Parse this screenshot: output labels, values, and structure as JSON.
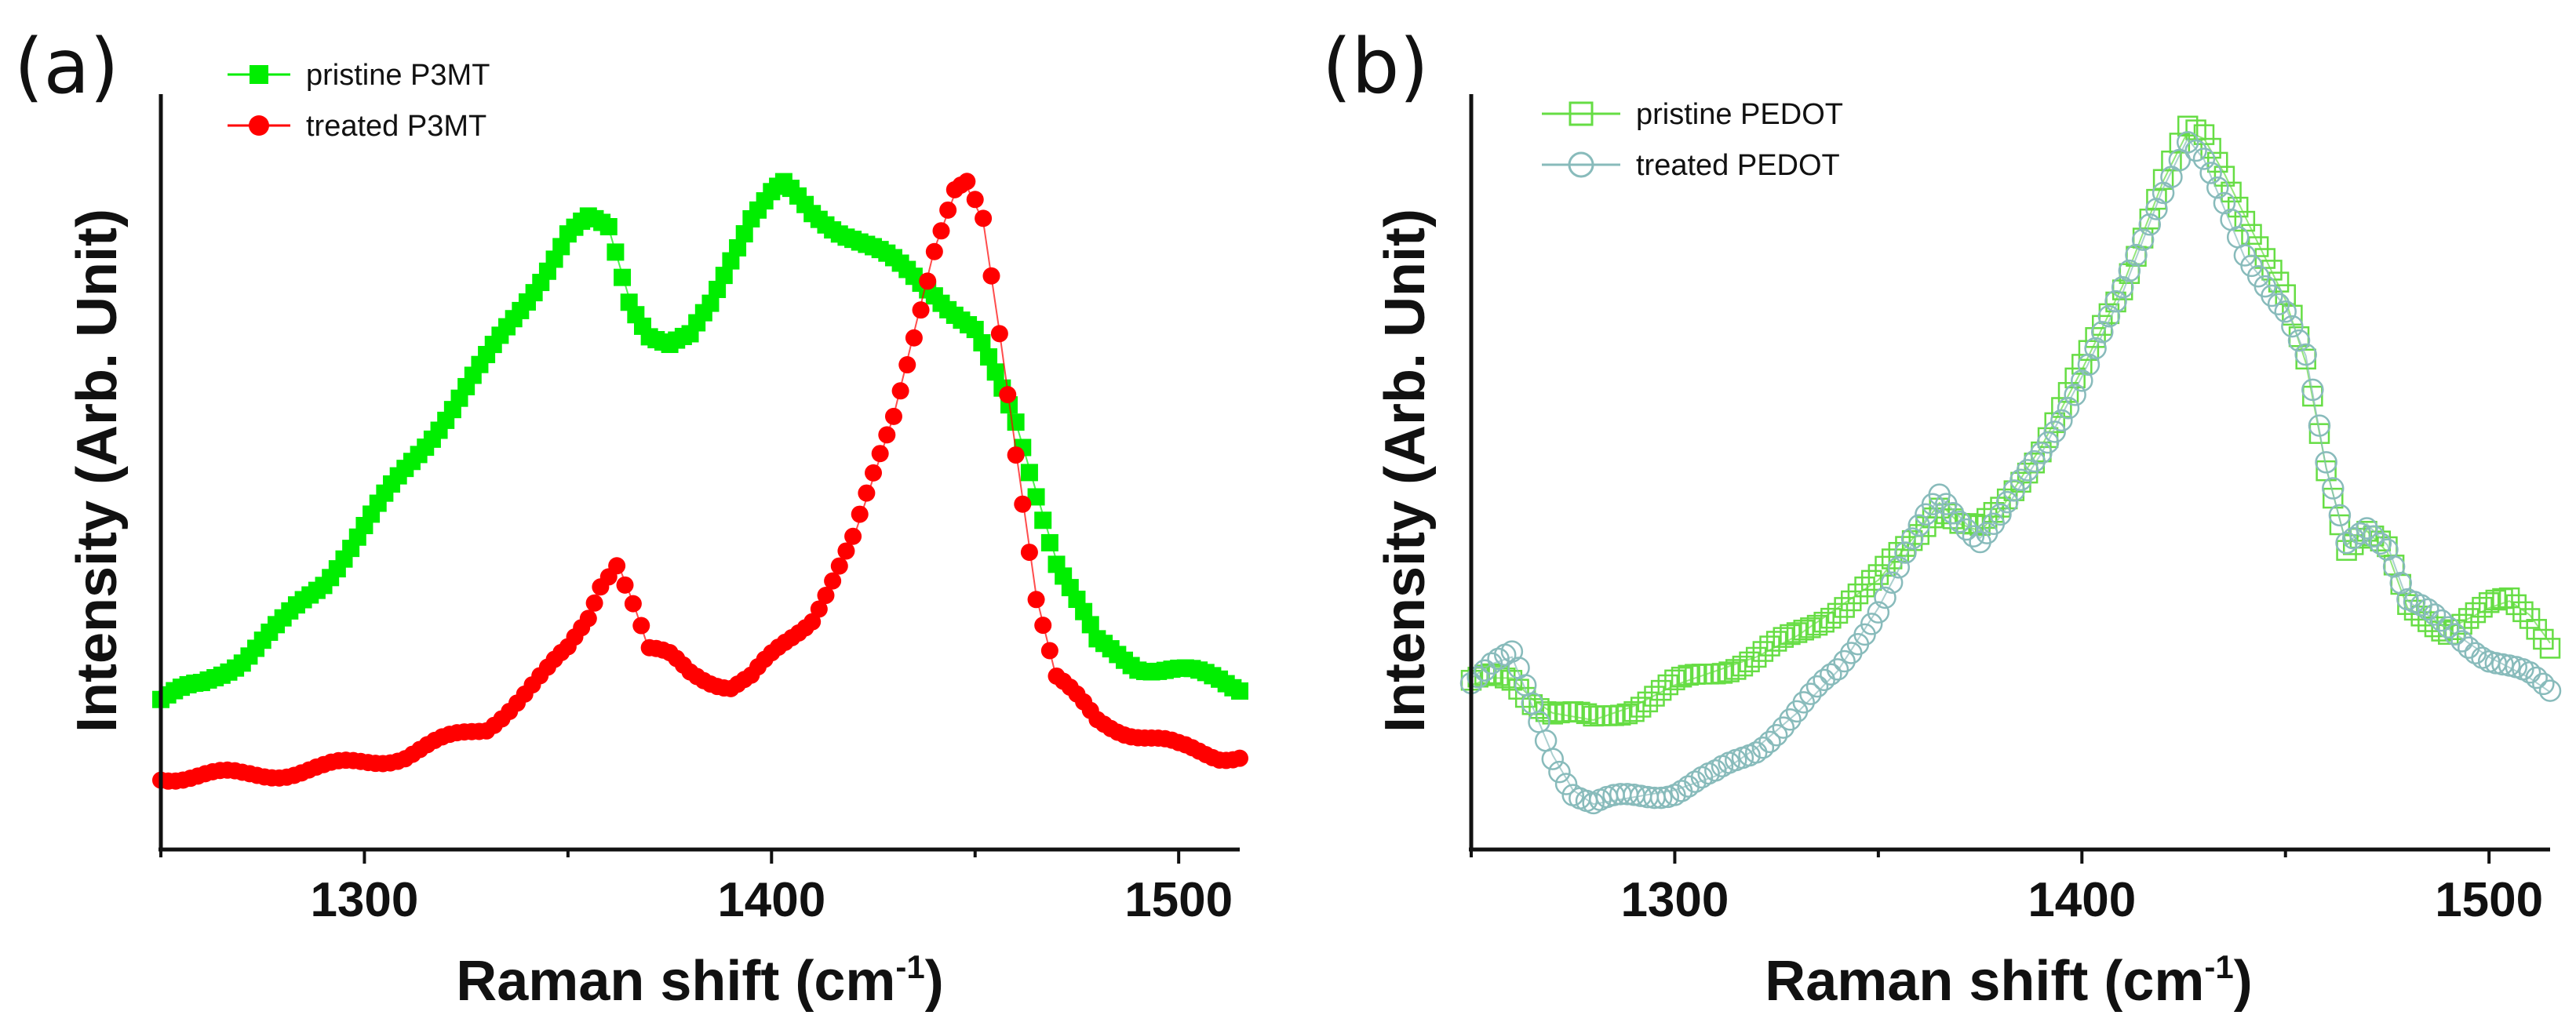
{
  "chart_data": [
    {
      "panel": "(a)",
      "type": "scatter",
      "xlabel": "Raman shift (cm",
      "xlabel_sup": "-1",
      "xlabel_close": ")",
      "ylabel": "Intensity (Arb. Unit)",
      "xlim": [
        1250,
        1515
      ],
      "ylim": [
        0,
        1.0
      ],
      "xticks": [
        1300,
        1400,
        1500
      ],
      "yticks_shown": false,
      "legend_position": "top-left",
      "series": [
        {
          "name": "pristine P3MT",
          "color": "#00ee00",
          "marker": "filled-square",
          "x": [
            1250,
            1260,
            1270,
            1280,
            1290,
            1300,
            1310,
            1320,
            1330,
            1340,
            1350,
            1355,
            1360,
            1365,
            1370,
            1375,
            1380,
            1385,
            1390,
            1395,
            1400,
            1403,
            1410,
            1420,
            1430,
            1440,
            1450,
            1460,
            1470,
            1480,
            1490,
            1500,
            1510,
            1515
          ],
          "y": [
            0.16,
            0.18,
            0.22,
            0.27,
            0.33,
            0.41,
            0.49,
            0.57,
            0.65,
            0.74,
            0.83,
            0.85,
            0.84,
            0.74,
            0.69,
            0.67,
            0.68,
            0.73,
            0.8,
            0.86,
            0.89,
            0.9,
            0.86,
            0.83,
            0.79,
            0.75,
            0.69,
            0.56,
            0.36,
            0.24,
            0.21,
            0.2,
            0.19,
            0.18
          ]
        },
        {
          "name": "treated P3MT",
          "color": "#ff0000",
          "marker": "filled-circle",
          "x": [
            1250,
            1270,
            1290,
            1310,
            1330,
            1345,
            1350,
            1355,
            1358,
            1362,
            1366,
            1370,
            1375,
            1380,
            1390,
            1395,
            1400,
            1410,
            1420,
            1430,
            1435,
            1440,
            1445,
            1448,
            1452,
            1456,
            1460,
            1465,
            1470,
            1480,
            1490,
            1500,
            1510,
            1515
          ],
          "y": [
            0.05,
            0.05,
            0.06,
            0.08,
            0.12,
            0.2,
            0.23,
            0.28,
            0.33,
            0.36,
            0.3,
            0.23,
            0.22,
            0.2,
            0.18,
            0.19,
            0.22,
            0.28,
            0.39,
            0.57,
            0.69,
            0.81,
            0.89,
            0.9,
            0.85,
            0.69,
            0.52,
            0.31,
            0.19,
            0.13,
            0.11,
            0.09,
            0.08,
            0.08
          ]
        }
      ]
    },
    {
      "panel": "(b)",
      "type": "scatter",
      "xlabel": "Raman shift (cm",
      "xlabel_sup": "-1",
      "xlabel_close": ")",
      "ylabel": "Intensity (Arb. Unit)",
      "xlim": [
        1250,
        1515
      ],
      "ylim": [
        0,
        1.0
      ],
      "xticks": [
        1300,
        1400,
        1500
      ],
      "yticks_shown": false,
      "legend_position": "top-left",
      "series": [
        {
          "name": "pristine PEDOT",
          "color": "#66dd44",
          "marker": "open-square",
          "x": [
            1250,
            1255,
            1260,
            1265,
            1270,
            1280,
            1290,
            1300,
            1310,
            1320,
            1330,
            1340,
            1350,
            1360,
            1365,
            1370,
            1375,
            1380,
            1390,
            1400,
            1410,
            1420,
            1426,
            1430,
            1435,
            1440,
            1450,
            1455,
            1460,
            1465,
            1470,
            1475,
            1480,
            1490,
            1500,
            1505,
            1510,
            1515
          ],
          "y": [
            0.19,
            0.2,
            0.2,
            0.17,
            0.15,
            0.14,
            0.16,
            0.19,
            0.21,
            0.23,
            0.26,
            0.3,
            0.34,
            0.41,
            0.45,
            0.42,
            0.41,
            0.44,
            0.53,
            0.64,
            0.76,
            0.91,
            0.98,
            0.97,
            0.92,
            0.86,
            0.74,
            0.65,
            0.5,
            0.39,
            0.41,
            0.38,
            0.3,
            0.27,
            0.3,
            0.31,
            0.29,
            0.25
          ]
        },
        {
          "name": "treated PEDOT",
          "color": "#88bbbb",
          "marker": "open-circle",
          "x": [
            1250,
            1255,
            1260,
            1265,
            1270,
            1275,
            1280,
            1290,
            1300,
            1310,
            1320,
            1330,
            1340,
            1350,
            1360,
            1365,
            1370,
            1375,
            1380,
            1390,
            1400,
            1410,
            1420,
            1426,
            1430,
            1435,
            1440,
            1450,
            1455,
            1460,
            1465,
            1470,
            1475,
            1480,
            1490,
            1500,
            1510,
            1515
          ],
          "y": [
            0.2,
            0.22,
            0.23,
            0.16,
            0.09,
            0.04,
            0.02,
            0.03,
            0.04,
            0.06,
            0.1,
            0.15,
            0.21,
            0.3,
            0.41,
            0.46,
            0.43,
            0.4,
            0.43,
            0.52,
            0.63,
            0.75,
            0.9,
            0.97,
            0.94,
            0.87,
            0.8,
            0.73,
            0.66,
            0.5,
            0.39,
            0.42,
            0.39,
            0.31,
            0.27,
            0.23,
            0.2,
            0.18
          ]
        }
      ]
    }
  ]
}
